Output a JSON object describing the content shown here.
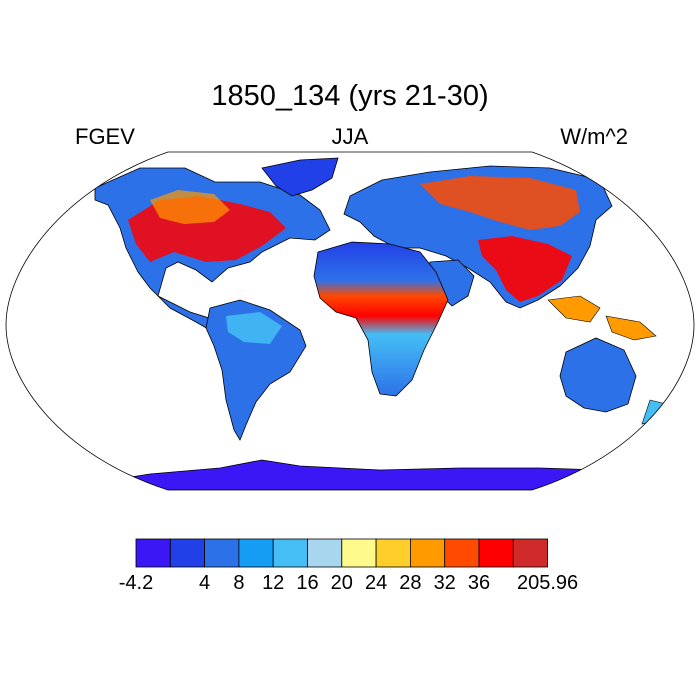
{
  "title": "1850_134 (yrs 21-30)",
  "left_label": "FGEV",
  "center_label": "JJA",
  "right_label": "W/m^2",
  "colorbar": {
    "colors": [
      "#3b17f5",
      "#2240e8",
      "#2d71e8",
      "#159cf5",
      "#44bef5",
      "#a8d6ef",
      "#fffa8c",
      "#fecf2a",
      "#ff9a00",
      "#ff4a00",
      "#ff0000",
      "#d12a2a"
    ],
    "labels": [
      "-4.2",
      "",
      "4",
      "8",
      "12",
      "16",
      "20",
      "24",
      "28",
      "32",
      "36",
      "",
      "205.96"
    ]
  }
}
